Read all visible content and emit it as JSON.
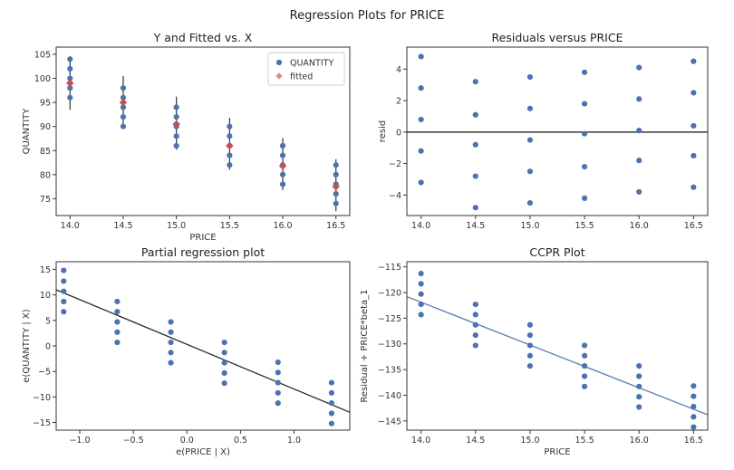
{
  "figure": {
    "title": "Regression Plots for PRICE"
  },
  "colors": {
    "blue": "#4c72b0",
    "red": "#c44e52",
    "pink": "#dd8888",
    "line_blue": "#5a7fb5",
    "line_black": "#2b2b2b",
    "errbar": "#333333"
  },
  "chart_data": [
    {
      "id": "yfit",
      "type": "scatter",
      "title": "Y and Fitted vs. X",
      "xlabel": "PRICE",
      "ylabel": "QUANTITY",
      "xlim": [
        13.87,
        16.63
      ],
      "ylim": [
        71.5,
        106.5
      ],
      "xticks": [
        14.0,
        14.5,
        15.0,
        15.5,
        16.0,
        16.5
      ],
      "xtick_labels": [
        "14.0",
        "14.5",
        "15.0",
        "15.5",
        "16.0",
        "16.5"
      ],
      "yticks": [
        75,
        80,
        85,
        90,
        95,
        100,
        105
      ],
      "ytick_labels": [
        "75",
        "80",
        "85",
        "90",
        "95",
        "100",
        "105"
      ],
      "legend": {
        "position": "top-right",
        "entries": [
          "QUANTITY",
          "fitted"
        ]
      },
      "series": [
        {
          "name": "QUANTITY",
          "points": [
            [
              14.0,
              96
            ],
            [
              14.0,
              98
            ],
            [
              14.0,
              100
            ],
            [
              14.0,
              102
            ],
            [
              14.0,
              104
            ],
            [
              14.5,
              90
            ],
            [
              14.5,
              92
            ],
            [
              14.5,
              94
            ],
            [
              14.5,
              96
            ],
            [
              14.5,
              98
            ],
            [
              15.0,
              86
            ],
            [
              15.0,
              88
            ],
            [
              15.0,
              90
            ],
            [
              15.0,
              92
            ],
            [
              15.0,
              94
            ],
            [
              15.5,
              82
            ],
            [
              15.5,
              84
            ],
            [
              15.5,
              86
            ],
            [
              15.5,
              88
            ],
            [
              15.5,
              90
            ],
            [
              16.0,
              78
            ],
            [
              16.0,
              80
            ],
            [
              16.0,
              82
            ],
            [
              16.0,
              84
            ],
            [
              16.0,
              86
            ],
            [
              16.5,
              74
            ],
            [
              16.5,
              76
            ],
            [
              16.5,
              78
            ],
            [
              16.5,
              80
            ],
            [
              16.5,
              82
            ]
          ]
        },
        {
          "name": "fitted",
          "points": [
            [
              14.0,
              99
            ],
            [
              14.5,
              95
            ],
            [
              15.0,
              90.5
            ],
            [
              15.5,
              86
            ],
            [
              16.0,
              81.8
            ],
            [
              16.5,
              77.5
            ]
          ]
        }
      ],
      "error_bars": [
        [
          14.0,
          93.5,
          104.3
        ],
        [
          14.5,
          89.5,
          100.5
        ],
        [
          15.0,
          85.2,
          96.2
        ],
        [
          15.5,
          81.0,
          91.8
        ],
        [
          16.0,
          76.8,
          87.6
        ],
        [
          16.5,
          72.4,
          83.2
        ]
      ]
    },
    {
      "id": "resid",
      "type": "scatter",
      "title": "Residuals versus PRICE",
      "xlabel": "",
      "ylabel": "resid",
      "xlim": [
        13.87,
        16.63
      ],
      "ylim": [
        -5.3,
        5.4
      ],
      "xticks": [
        14.0,
        14.5,
        15.0,
        15.5,
        16.0,
        16.5
      ],
      "xtick_labels": [
        "14.0",
        "14.5",
        "15.0",
        "15.5",
        "16.0",
        "16.5"
      ],
      "yticks": [
        -4,
        -2,
        0,
        2,
        4
      ],
      "ytick_labels": [
        "−4",
        "−2",
        "0",
        "2",
        "4"
      ],
      "hline": 0,
      "series": [
        {
          "name": "",
          "points": [
            [
              14.0,
              4.8
            ],
            [
              14.0,
              2.8
            ],
            [
              14.0,
              0.8
            ],
            [
              14.0,
              -1.2
            ],
            [
              14.0,
              -3.2
            ],
            [
              14.5,
              3.2
            ],
            [
              14.5,
              1.1
            ],
            [
              14.5,
              -0.8
            ],
            [
              14.5,
              -2.8
            ],
            [
              14.5,
              -4.8
            ],
            [
              15.0,
              3.5
            ],
            [
              15.0,
              1.5
            ],
            [
              15.0,
              -0.5
            ],
            [
              15.0,
              -2.5
            ],
            [
              15.0,
              -4.5
            ],
            [
              15.5,
              3.8
            ],
            [
              15.5,
              1.8
            ],
            [
              15.5,
              -0.1
            ],
            [
              15.5,
              -2.2
            ],
            [
              15.5,
              -4.2
            ],
            [
              16.0,
              4.1
            ],
            [
              16.0,
              2.1
            ],
            [
              16.0,
              0.1
            ],
            [
              16.0,
              -1.8
            ],
            [
              16.0,
              -3.8
            ],
            [
              16.5,
              4.5
            ],
            [
              16.5,
              2.5
            ],
            [
              16.5,
              0.4
            ],
            [
              16.5,
              -1.5
            ],
            [
              16.5,
              -3.5
            ]
          ]
        }
      ]
    },
    {
      "id": "partial",
      "type": "scatter",
      "title": "Partial regression plot",
      "xlabel": "e(PRICE | X)",
      "ylabel": "e(QUANTITY | X)",
      "xlim": [
        -1.22,
        1.52
      ],
      "ylim": [
        -16.5,
        16.5
      ],
      "xticks": [
        -1.0,
        -0.5,
        0.0,
        0.5,
        1.0
      ],
      "xtick_labels": [
        "−1.0",
        "−0.5",
        "0.0",
        "0.5",
        "1.0"
      ],
      "yticks": [
        -15,
        -10,
        -5,
        0,
        5,
        10,
        15
      ],
      "ytick_labels": [
        "−15",
        "−10",
        "−5",
        "0",
        "5",
        "10",
        "15"
      ],
      "fit_line": [
        [
          -1.22,
          11.0
        ],
        [
          1.52,
          -13.0
        ]
      ],
      "series": [
        {
          "name": "",
          "points": [
            [
              -1.15,
              6.7
            ],
            [
              -1.15,
              8.7
            ],
            [
              -1.15,
              10.7
            ],
            [
              -1.15,
              12.7
            ],
            [
              -1.15,
              14.8
            ],
            [
              -0.65,
              0.7
            ],
            [
              -0.65,
              2.7
            ],
            [
              -0.65,
              4.7
            ],
            [
              -0.65,
              6.7
            ],
            [
              -0.65,
              8.7
            ],
            [
              -0.15,
              -3.3
            ],
            [
              -0.15,
              -1.3
            ],
            [
              -0.15,
              0.7
            ],
            [
              -0.15,
              2.7
            ],
            [
              -0.15,
              4.7
            ],
            [
              0.35,
              -7.3
            ],
            [
              0.35,
              -5.3
            ],
            [
              0.35,
              -3.3
            ],
            [
              0.35,
              -1.3
            ],
            [
              0.35,
              0.7
            ],
            [
              0.85,
              -11.2
            ],
            [
              0.85,
              -9.2
            ],
            [
              0.85,
              -7.2
            ],
            [
              0.85,
              -5.2
            ],
            [
              0.85,
              -3.2
            ],
            [
              1.35,
              -15.2
            ],
            [
              1.35,
              -13.2
            ],
            [
              1.35,
              -11.2
            ],
            [
              1.35,
              -9.2
            ],
            [
              1.35,
              -7.2
            ]
          ]
        }
      ]
    },
    {
      "id": "ccpr",
      "type": "scatter",
      "title": "CCPR Plot",
      "xlabel": "PRICE",
      "ylabel": "Residual + PRICE*beta_1",
      "xlim": [
        13.87,
        16.63
      ],
      "ylim": [
        -146.8,
        -114.0
      ],
      "xticks": [
        14.0,
        14.5,
        15.0,
        15.5,
        16.0,
        16.5
      ],
      "xtick_labels": [
        "14.0",
        "14.5",
        "15.0",
        "15.5",
        "16.0",
        "16.5"
      ],
      "yticks": [
        -145,
        -140,
        -135,
        -130,
        -125,
        -120,
        -115
      ],
      "ytick_labels": [
        "−145",
        "−140",
        "−135",
        "−130",
        "−125",
        "−120",
        "−115"
      ],
      "fit_line": [
        [
          13.87,
          -120.8
        ],
        [
          16.63,
          -143.8
        ]
      ],
      "series": [
        {
          "name": "",
          "points": [
            [
              14.0,
              -124.3
            ],
            [
              14.0,
              -122.3
            ],
            [
              14.0,
              -120.3
            ],
            [
              14.0,
              -118.3
            ],
            [
              14.0,
              -116.3
            ],
            [
              14.5,
              -130.3
            ],
            [
              14.5,
              -128.3
            ],
            [
              14.5,
              -126.3
            ],
            [
              14.5,
              -124.3
            ],
            [
              14.5,
              -122.3
            ],
            [
              15.0,
              -134.3
            ],
            [
              15.0,
              -132.3
            ],
            [
              15.0,
              -130.3
            ],
            [
              15.0,
              -128.3
            ],
            [
              15.0,
              -126.3
            ],
            [
              15.5,
              -138.3
            ],
            [
              15.5,
              -136.3
            ],
            [
              15.5,
              -134.3
            ],
            [
              15.5,
              -132.3
            ],
            [
              15.5,
              -130.3
            ],
            [
              16.0,
              -142.3
            ],
            [
              16.0,
              -140.3
            ],
            [
              16.0,
              -138.3
            ],
            [
              16.0,
              -136.3
            ],
            [
              16.0,
              -134.3
            ],
            [
              16.5,
              -146.2
            ],
            [
              16.5,
              -144.2
            ],
            [
              16.5,
              -142.2
            ],
            [
              16.5,
              -140.2
            ],
            [
              16.5,
              -138.2
            ]
          ]
        }
      ]
    }
  ]
}
